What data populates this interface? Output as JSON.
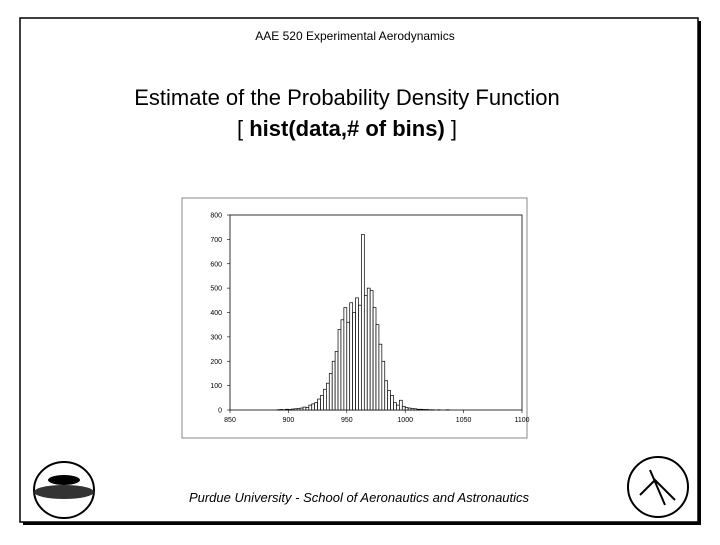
{
  "header": "AAE 520 Experimental Aerodynamics",
  "title_line1": "Estimate of the Probability Density Function",
  "title_line2": [
    "[",
    "hist(data,# of bins)",
    "]"
  ],
  "footer": "Purdue University - School of Aeronautics and Astronautics",
  "chart_data": {
    "type": "histogram",
    "bins": [
      890,
      892.5,
      895,
      897.5,
      900,
      902.5,
      905,
      907.5,
      910,
      912.5,
      915,
      917.5,
      920,
      922.5,
      925,
      927.5,
      930,
      932.5,
      935,
      937.5,
      940,
      942.5,
      945,
      947.5,
      950,
      952.5,
      955,
      957.5,
      960,
      962.5,
      965,
      967.5,
      970,
      972.5,
      975,
      977.5,
      980,
      982.5,
      985,
      987.5,
      990,
      992.5,
      995,
      997.5,
      1000,
      1002.5,
      1005,
      1007.5,
      1010,
      1012.5,
      1015,
      1017.5,
      1020,
      1022.5,
      1025,
      1027.5,
      1030,
      1032.5,
      1035,
      1037.5,
      1040
    ],
    "values": [
      1,
      2,
      1,
      3,
      2,
      4,
      5,
      6,
      8,
      12,
      10,
      20,
      25,
      30,
      45,
      60,
      85,
      110,
      150,
      200,
      240,
      330,
      370,
      420,
      360,
      440,
      400,
      460,
      430,
      720,
      470,
      500,
      490,
      420,
      350,
      270,
      200,
      120,
      80,
      60,
      30,
      20,
      40,
      15,
      10,
      8,
      6,
      5,
      3,
      3,
      2,
      2,
      1,
      1,
      0,
      1,
      0,
      0,
      1,
      0
    ],
    "color": "#ffffff",
    "xlim": [
      850,
      1100
    ],
    "xticks": [
      850,
      900,
      950,
      1000,
      1050,
      1100
    ],
    "ylim": [
      0,
      800
    ],
    "yticks": [
      0,
      100,
      200,
      300,
      400,
      500,
      600,
      700,
      800
    ]
  }
}
